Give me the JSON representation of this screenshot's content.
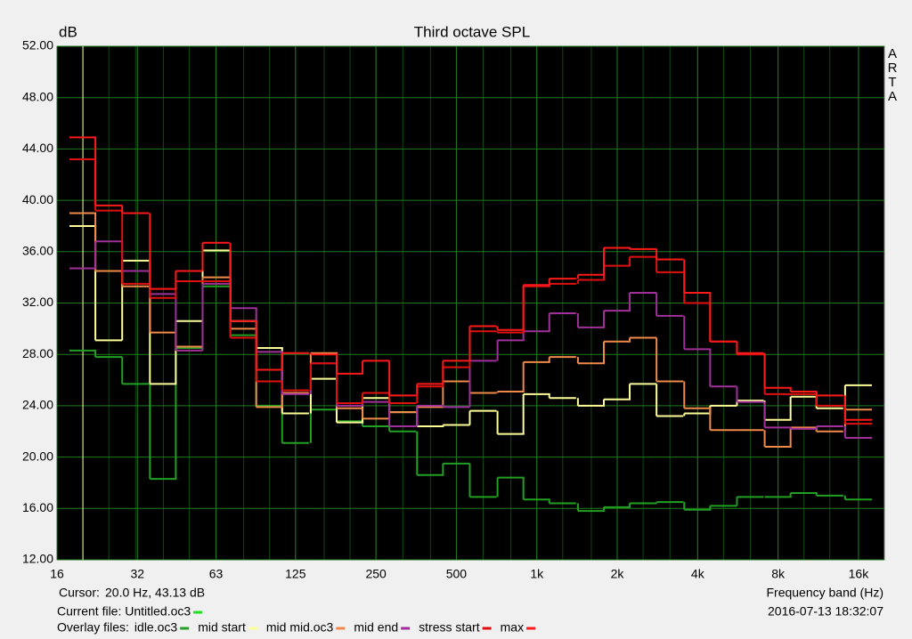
{
  "chart_data": {
    "type": "step",
    "title": "Third octave SPL",
    "y_label": "dB",
    "x_label": "Frequency band (Hz)",
    "brand": [
      "A",
      "R",
      "T",
      "A"
    ],
    "cursor_label": "Cursor:",
    "cursor_text": "20.0 Hz, 43.13 dB",
    "current_file_label": "Current file: Untitled.oc3",
    "current_file_color": "#22e022",
    "timestamp": "2016-07-13  18:32:07",
    "overlay_label": "Overlay files:",
    "log_x": true,
    "grid": true,
    "xlim": [
      16,
      20000
    ],
    "ylim": [
      12,
      52
    ],
    "xticks": [
      16,
      32,
      63,
      125,
      250,
      500,
      {
        "value": 1000,
        "label": "1k"
      },
      {
        "value": 2000,
        "label": "2k"
      },
      {
        "value": 4000,
        "label": "4k"
      },
      {
        "value": 8000,
        "label": "8k"
      },
      {
        "value": 16000,
        "label": "16k"
      }
    ],
    "yticks": [
      {
        "value": 12,
        "label": "12.00"
      },
      {
        "value": 16,
        "label": "16.00"
      },
      {
        "value": 20,
        "label": "20.00"
      },
      {
        "value": 24,
        "label": "24.00"
      },
      {
        "value": 28,
        "label": "28.00"
      },
      {
        "value": 32,
        "label": "32.00"
      },
      {
        "value": 36,
        "label": "36.00"
      },
      {
        "value": 40,
        "label": "40.00"
      },
      {
        "value": 44,
        "label": "44.00"
      },
      {
        "value": 48,
        "label": "48.00"
      },
      {
        "value": 52,
        "label": "52.00"
      }
    ],
    "x": [
      20,
      25,
      31.5,
      40,
      50,
      63,
      80,
      100,
      125,
      160,
      200,
      250,
      315,
      400,
      500,
      630,
      800,
      1000,
      1250,
      1600,
      2000,
      2500,
      3150,
      4000,
      5000,
      6300,
      8000,
      10000,
      12500,
      16000
    ],
    "series": [
      {
        "name": "idle.oc3",
        "color": "#22a022",
        "values": [
          28.3,
          27.8,
          25.7,
          18.3,
          28.5,
          33.3,
          29.5,
          24.0,
          21.1,
          23.7,
          22.8,
          22.4,
          22.0,
          18.6,
          19.5,
          16.9,
          18.4,
          16.7,
          16.4,
          15.8,
          16.1,
          16.4,
          16.5,
          15.9,
          16.2,
          16.9,
          16.9,
          17.2,
          17.0,
          16.7
        ]
      },
      {
        "name": "mid start",
        "color": "#ffff99",
        "values": [
          38.0,
          29.1,
          35.3,
          25.7,
          30.6,
          36.1,
          30.6,
          28.5,
          23.4,
          26.1,
          22.7,
          24.6,
          23.5,
          22.4,
          22.5,
          23.6,
          21.8,
          24.9,
          24.6,
          24.0,
          24.5,
          25.7,
          23.2,
          23.4,
          24.0,
          24.4,
          22.9,
          24.7,
          23.8,
          25.6
        ]
      },
      {
        "name": "mid mid.oc3",
        "color": "#f08a4a",
        "values": [
          39.0,
          34.5,
          33.3,
          29.7,
          28.6,
          34.0,
          30.0,
          23.9,
          25.0,
          28.1,
          23.8,
          23.0,
          23.5,
          23.9,
          25.9,
          25.0,
          25.1,
          27.4,
          27.8,
          27.3,
          29.0,
          29.3,
          25.9,
          23.8,
          22.1,
          22.1,
          20.8,
          22.3,
          22.0,
          23.7
        ]
      },
      {
        "name": "mid end",
        "color": "#a0309a",
        "values": [
          34.7,
          36.8,
          34.5,
          32.7,
          28.3,
          33.5,
          31.6,
          28.2,
          24.9,
          27.3,
          24.0,
          24.3,
          22.4,
          24.0,
          23.9,
          27.5,
          29.1,
          29.8,
          31.2,
          30.1,
          31.4,
          32.8,
          31.0,
          28.4,
          25.5,
          24.3,
          22.3,
          22.2,
          22.4,
          21.5
        ]
      },
      {
        "name": "stress start",
        "color": "#e01010",
        "values": [
          43.2,
          39.2,
          33.5,
          32.4,
          33.7,
          33.7,
          29.3,
          25.9,
          25.2,
          27.3,
          24.2,
          25.0,
          24.2,
          25.5,
          27.0,
          29.8,
          29.7,
          33.3,
          33.5,
          33.8,
          34.9,
          35.6,
          34.4,
          32.0,
          29.0,
          28.0,
          24.9,
          24.9,
          24.0,
          22.6
        ]
      },
      {
        "name": "max",
        "color": "#ff1a1a",
        "values": [
          44.9,
          39.6,
          39.0,
          33.1,
          34.5,
          36.7,
          30.6,
          26.8,
          28.1,
          28.0,
          26.5,
          27.5,
          24.8,
          25.7,
          27.5,
          30.2,
          29.9,
          33.4,
          33.9,
          34.2,
          36.3,
          36.2,
          35.4,
          32.8,
          29.0,
          28.1,
          25.4,
          25.1,
          24.8,
          22.9
        ]
      }
    ]
  }
}
